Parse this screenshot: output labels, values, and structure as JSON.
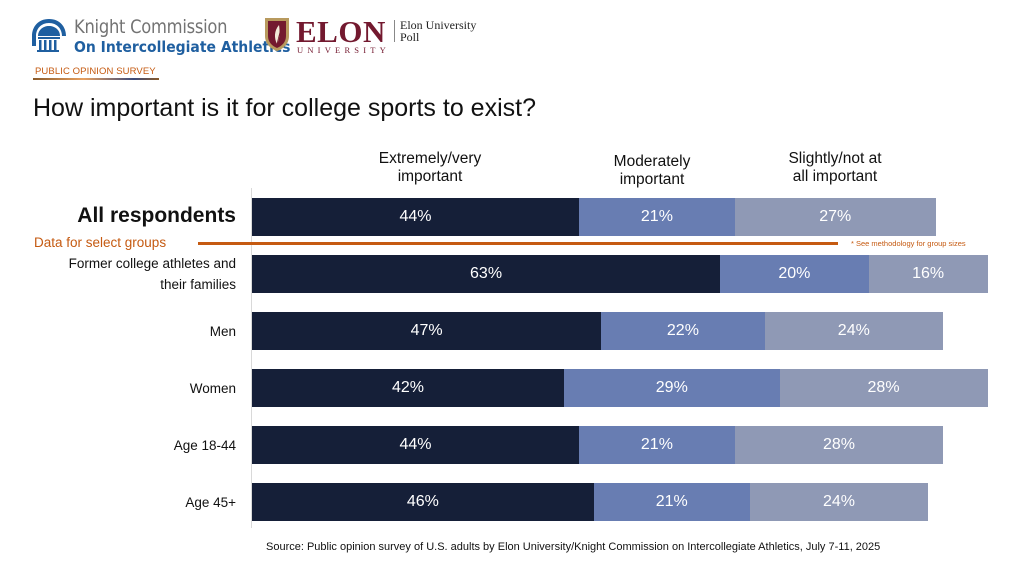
{
  "header": {
    "knight_line1": "Knight Commission",
    "knight_line2": "On Intercollegiate Athletics",
    "elon_word": "ELON",
    "elon_sub": "UNIVERSITY",
    "elon_poll_line1": "Elon University",
    "elon_poll_line2": "Poll",
    "survey_tag": "PUBLIC OPINION SURVEY"
  },
  "colors": {
    "extremely_very": "#151f38",
    "moderately": "#687db2",
    "slightly_not": "#8f99b5",
    "accent_orange": "#c55a11",
    "elon_maroon": "#73192f",
    "knight_blue": "#1f5fa0"
  },
  "chart_data": {
    "type": "bar",
    "orientation": "horizontal",
    "stacked": true,
    "title": "How important is it for college sports to exist?",
    "xlabel": "",
    "ylabel": "",
    "xlim": [
      0,
      100
    ],
    "grid": false,
    "legend_placement": "top",
    "categories": [
      "All respondents",
      "Former college athletes and their families",
      "Men",
      "Women",
      "Age 18-44",
      "Age 45+"
    ],
    "category_lines": [
      [
        "All respondents"
      ],
      [
        "Former college athletes and",
        "their families"
      ],
      [
        "Men"
      ],
      [
        "Women"
      ],
      [
        "Age 18-44"
      ],
      [
        "Age 45+"
      ]
    ],
    "series": [
      {
        "name": "Extremely/very important",
        "name_lines": [
          "Extremely/very",
          "important"
        ],
        "values": [
          44,
          63,
          47,
          42,
          44,
          46
        ]
      },
      {
        "name": "Moderately important",
        "name_lines": [
          "Moderately",
          "important"
        ],
        "values": [
          21,
          20,
          22,
          29,
          21,
          21
        ]
      },
      {
        "name": "Slightly/not at all important",
        "name_lines": [
          "Slightly/not at",
          "all important"
        ],
        "values": [
          27,
          16,
          24,
          28,
          28,
          24
        ]
      }
    ],
    "value_suffix": "%",
    "annotations": {
      "groups_label": "Data for select groups",
      "groups_note": "* See methodology for group sizes"
    },
    "source": "Source: Public opinion survey of U.S. adults by Elon University/Knight Commission on Intercollegiate Athletics, July 7-11, 2025"
  }
}
